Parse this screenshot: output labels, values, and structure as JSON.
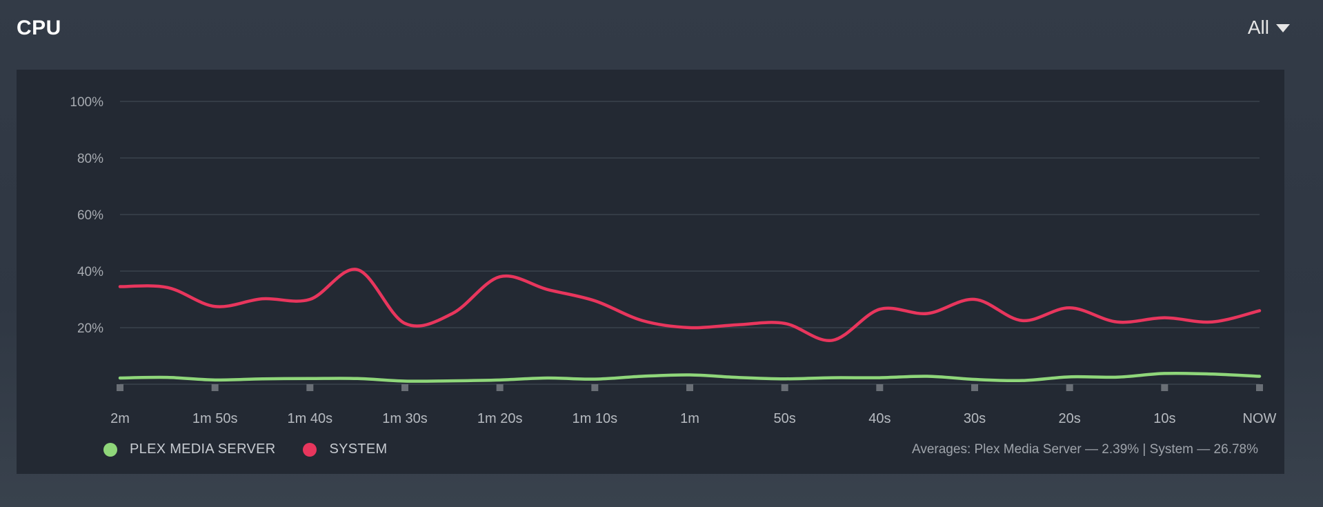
{
  "header": {
    "title": "CPU",
    "range_selector": "All"
  },
  "legend": [
    {
      "name": "PLEX MEDIA SERVER",
      "color": "#8fd67a"
    },
    {
      "name": "SYSTEM",
      "color": "#e8365d"
    }
  ],
  "averages_text": "Averages: Plex Media Server — 2.39% | System — 26.78%",
  "chart_data": {
    "type": "line",
    "ylim": [
      0,
      100
    ],
    "y_ticks": [
      "100%",
      "80%",
      "60%",
      "40%",
      "20%"
    ],
    "y_tick_values": [
      100,
      80,
      60,
      40,
      20
    ],
    "x_ticks": [
      "2m",
      "1m 50s",
      "1m 40s",
      "1m 30s",
      "1m 20s",
      "1m 10s",
      "1m",
      "50s",
      "40s",
      "30s",
      "20s",
      "10s",
      "NOW"
    ],
    "x_tick_values": [
      -120,
      -110,
      -100,
      -90,
      -80,
      -70,
      -60,
      -50,
      -40,
      -30,
      -20,
      -10,
      0
    ],
    "xlim": [
      -120,
      0
    ],
    "grid": true,
    "series": [
      {
        "name": "SYSTEM",
        "color": "#e8365d",
        "points": [
          [
            -120,
            34.5
          ],
          [
            -115,
            34.2
          ],
          [
            -110,
            27.5
          ],
          [
            -105,
            30.2
          ],
          [
            -100,
            30.0
          ],
          [
            -95,
            40.5
          ],
          [
            -90,
            21.5
          ],
          [
            -85,
            25.0
          ],
          [
            -80,
            38.0
          ],
          [
            -75,
            33.5
          ],
          [
            -70,
            29.5
          ],
          [
            -65,
            22.5
          ],
          [
            -60,
            20.0
          ],
          [
            -55,
            21.0
          ],
          [
            -50,
            21.5
          ],
          [
            -45,
            15.5
          ],
          [
            -40,
            26.5
          ],
          [
            -35,
            25.0
          ],
          [
            -30,
            30.0
          ],
          [
            -25,
            22.5
          ],
          [
            -20,
            27.0
          ],
          [
            -15,
            22.0
          ],
          [
            -10,
            23.5
          ],
          [
            -5,
            22.0
          ],
          [
            0,
            26.0
          ]
        ]
      },
      {
        "name": "PLEX MEDIA SERVER",
        "color": "#8fd67a",
        "points": [
          [
            -120,
            2.2
          ],
          [
            -115,
            2.4
          ],
          [
            -110,
            1.5
          ],
          [
            -105,
            1.9
          ],
          [
            -100,
            2.0
          ],
          [
            -95,
            2.0
          ],
          [
            -90,
            1.1
          ],
          [
            -85,
            1.2
          ],
          [
            -80,
            1.5
          ],
          [
            -75,
            2.2
          ],
          [
            -70,
            1.8
          ],
          [
            -65,
            2.8
          ],
          [
            -60,
            3.3
          ],
          [
            -55,
            2.4
          ],
          [
            -50,
            1.9
          ],
          [
            -45,
            2.3
          ],
          [
            -40,
            2.3
          ],
          [
            -35,
            2.8
          ],
          [
            -30,
            1.7
          ],
          [
            -25,
            1.3
          ],
          [
            -20,
            2.6
          ],
          [
            -15,
            2.5
          ],
          [
            -10,
            3.8
          ],
          [
            -5,
            3.6
          ],
          [
            0,
            2.8
          ]
        ]
      }
    ]
  }
}
